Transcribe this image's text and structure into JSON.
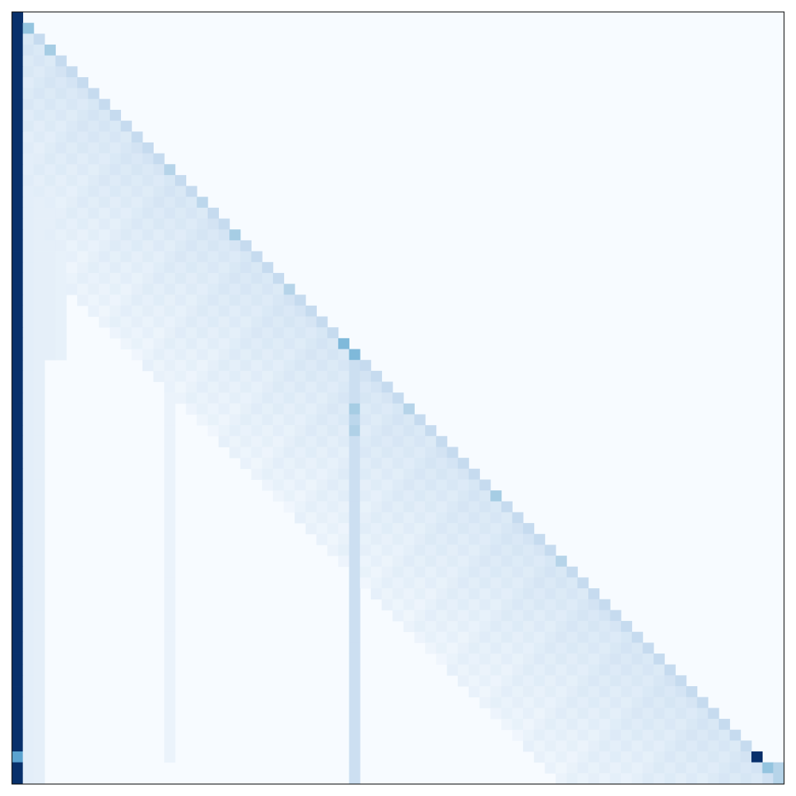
{
  "chart_data": {
    "type": "heatmap",
    "title": "",
    "xlabel": "",
    "ylabel": "",
    "rows": 71,
    "cols": 71,
    "colormap": "Blues",
    "value_range": [
      0,
      1
    ],
    "background_value": 0.0,
    "axis_ticks": "none",
    "legend": "none",
    "first_column": {
      "col": 0,
      "default_value": 1.0,
      "overrides": [
        {
          "row": 68,
          "value": 0.55
        }
      ]
    },
    "diagonal": {
      "default_value": 0.25,
      "overrides": [
        {
          "row": 1,
          "value": 0.4
        },
        {
          "row": 3,
          "value": 0.35
        },
        {
          "row": 14,
          "value": 0.3
        },
        {
          "row": 17,
          "value": 0.28
        },
        {
          "row": 20,
          "value": 0.35
        },
        {
          "row": 25,
          "value": 0.3
        },
        {
          "row": 30,
          "value": 0.45
        },
        {
          "row": 36,
          "value": 0.3
        },
        {
          "row": 44,
          "value": 0.35
        },
        {
          "row": 50,
          "value": 0.3
        },
        {
          "row": 68,
          "value": 1.0
        },
        {
          "row": 69,
          "value": 0.4
        },
        {
          "row": 70,
          "value": 0.3
        }
      ]
    },
    "band": {
      "width": 20,
      "value_near": 0.16,
      "value_far": 0.06
    },
    "vertical_stripes": [
      {
        "col": 1,
        "row_start": 2,
        "row_end": 70,
        "value": 0.1
      },
      {
        "col": 2,
        "row_start": 2,
        "row_end": 70,
        "value": 0.09
      },
      {
        "col": 3,
        "row_start": 3,
        "row_end": 31,
        "value": 0.09
      },
      {
        "col": 4,
        "row_start": 4,
        "row_end": 31,
        "value": 0.08
      },
      {
        "col": 14,
        "row_start": 20,
        "row_end": 68,
        "value": 0.06
      },
      {
        "col": 31,
        "row_start": 31,
        "row_end": 70,
        "value": 0.22
      }
    ],
    "highlight_cells": [
      {
        "row": 31,
        "col": 31,
        "value": 0.45
      },
      {
        "row": 36,
        "col": 31,
        "value": 0.35
      },
      {
        "row": 38,
        "col": 31,
        "value": 0.32
      },
      {
        "row": 37,
        "col": 31,
        "value": 0.28
      },
      {
        "row": 69,
        "col": 70,
        "value": 0.3
      },
      {
        "row": 70,
        "col": 69,
        "value": 0.2
      }
    ]
  }
}
